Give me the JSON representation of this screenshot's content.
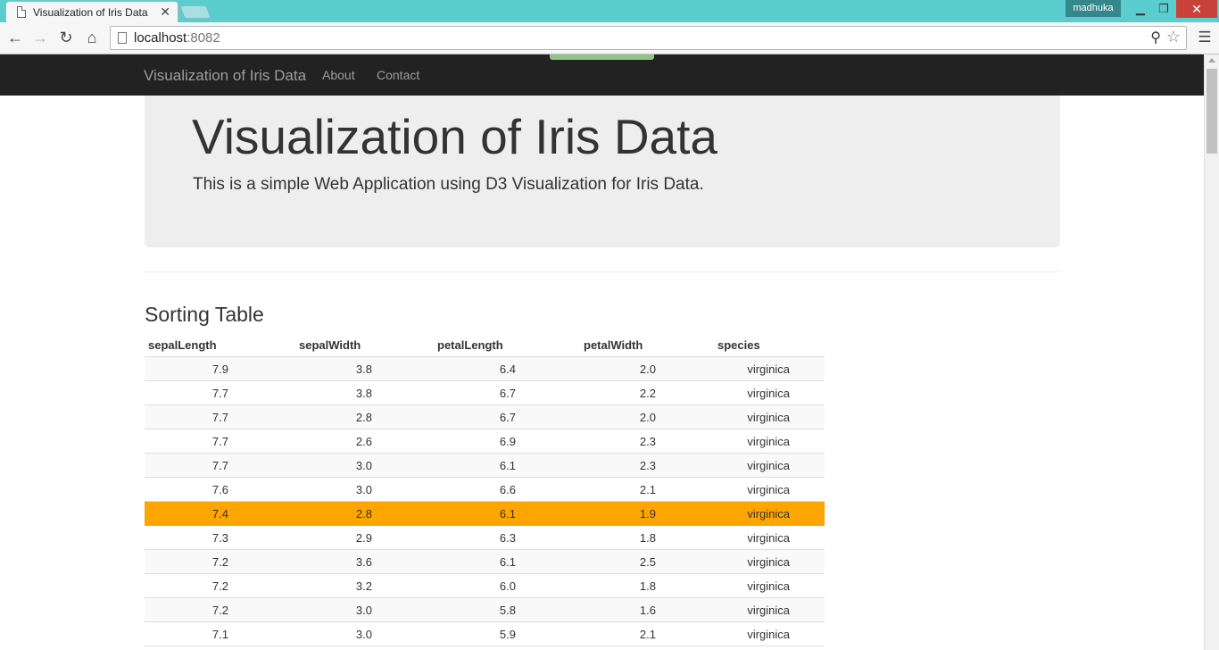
{
  "browser": {
    "tab_title": "Visualization of Iris Data",
    "profile_name": "madhuka",
    "url_host": "localhost",
    "url_port": ":8082"
  },
  "navbar": {
    "brand": "Visualization of Iris Data",
    "links": [
      "About",
      "Contact"
    ]
  },
  "jumbotron": {
    "title": "Visualization of Iris Data",
    "subtitle": "This is a simple Web Application using D3 Visualization for Iris Data."
  },
  "table": {
    "title": "Sorting Table",
    "columns": [
      "sepalLength",
      "sepalWidth",
      "petalLength",
      "petalWidth",
      "species"
    ],
    "highlight_color": "#ffa500",
    "rows": [
      {
        "cells": [
          "7.9",
          "3.8",
          "6.4",
          "2.0",
          "virginica"
        ],
        "highlighted": false
      },
      {
        "cells": [
          "7.7",
          "3.8",
          "6.7",
          "2.2",
          "virginica"
        ],
        "highlighted": false
      },
      {
        "cells": [
          "7.7",
          "2.8",
          "6.7",
          "2.0",
          "virginica"
        ],
        "highlighted": false
      },
      {
        "cells": [
          "7.7",
          "2.6",
          "6.9",
          "2.3",
          "virginica"
        ],
        "highlighted": false
      },
      {
        "cells": [
          "7.7",
          "3.0",
          "6.1",
          "2.3",
          "virginica"
        ],
        "highlighted": false
      },
      {
        "cells": [
          "7.6",
          "3.0",
          "6.6",
          "2.1",
          "virginica"
        ],
        "highlighted": false
      },
      {
        "cells": [
          "7.4",
          "2.8",
          "6.1",
          "1.9",
          "virginica"
        ],
        "highlighted": true
      },
      {
        "cells": [
          "7.3",
          "2.9",
          "6.3",
          "1.8",
          "virginica"
        ],
        "highlighted": false
      },
      {
        "cells": [
          "7.2",
          "3.6",
          "6.1",
          "2.5",
          "virginica"
        ],
        "highlighted": false
      },
      {
        "cells": [
          "7.2",
          "3.2",
          "6.0",
          "1.8",
          "virginica"
        ],
        "highlighted": false
      },
      {
        "cells": [
          "7.2",
          "3.0",
          "5.8",
          "1.6",
          "virginica"
        ],
        "highlighted": false
      },
      {
        "cells": [
          "7.1",
          "3.0",
          "5.9",
          "2.1",
          "virginica"
        ],
        "highlighted": false
      }
    ]
  },
  "icons": {
    "back": "back-arrow-icon",
    "forward": "forward-arrow-icon",
    "reload": "reload-icon",
    "home": "home-icon",
    "zoom": "zoom-icon",
    "bookmark": "star-icon",
    "menu": "hamburger-menu-icon"
  }
}
